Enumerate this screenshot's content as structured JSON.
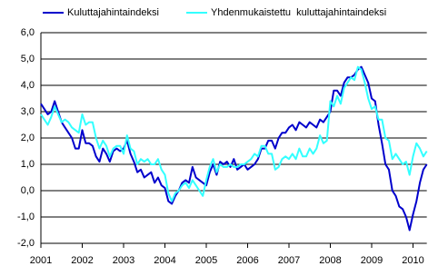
{
  "chart_data": {
    "type": "line",
    "categories": [
      "2001",
      null,
      null,
      null,
      null,
      null,
      null,
      null,
      null,
      null,
      null,
      null,
      "2002",
      null,
      null,
      null,
      null,
      null,
      null,
      null,
      null,
      null,
      null,
      null,
      "2003",
      null,
      null,
      null,
      null,
      null,
      null,
      null,
      null,
      null,
      null,
      null,
      "2004",
      null,
      null,
      null,
      null,
      null,
      null,
      null,
      null,
      null,
      null,
      null,
      "2005",
      null,
      null,
      null,
      null,
      null,
      null,
      null,
      null,
      null,
      null,
      null,
      "2006",
      null,
      null,
      null,
      null,
      null,
      null,
      null,
      null,
      null,
      null,
      null,
      "2007",
      null,
      null,
      null,
      null,
      null,
      null,
      null,
      null,
      null,
      null,
      null,
      "2008",
      null,
      null,
      null,
      null,
      null,
      null,
      null,
      null,
      null,
      null,
      null,
      "2009",
      null,
      null,
      null,
      null,
      null,
      null,
      null,
      null,
      null,
      null,
      null,
      "2010",
      null,
      null,
      null,
      null
    ],
    "series": [
      {
        "name": "Kuluttajahintaindeksi",
        "color": "#0000cc",
        "values": [
          3.3,
          3.1,
          2.9,
          3.0,
          3.4,
          3.0,
          2.6,
          2.4,
          2.2,
          2.0,
          1.6,
          1.6,
          2.3,
          1.8,
          1.8,
          1.7,
          1.3,
          1.1,
          1.6,
          1.4,
          1.1,
          1.5,
          1.6,
          1.5,
          1.6,
          1.9,
          1.4,
          1.1,
          0.7,
          0.8,
          0.5,
          0.6,
          0.7,
          0.3,
          0.5,
          0.2,
          0.1,
          -0.4,
          -0.5,
          -0.2,
          0.0,
          0.3,
          0.4,
          0.3,
          0.9,
          0.5,
          0.4,
          0.3,
          0.2,
          0.7,
          1.0,
          0.6,
          1.1,
          1.0,
          1.1,
          0.9,
          1.2,
          0.8,
          0.9,
          1.0,
          0.8,
          0.9,
          1.0,
          1.2,
          1.6,
          1.6,
          1.9,
          1.9,
          1.6,
          2.0,
          2.2,
          2.2,
          2.4,
          2.5,
          2.3,
          2.6,
          2.5,
          2.4,
          2.6,
          2.5,
          2.4,
          2.7,
          2.6,
          2.8,
          3.0,
          3.8,
          3.8,
          3.6,
          4.1,
          4.3,
          4.3,
          4.4,
          4.6,
          4.7,
          4.4,
          4.1,
          3.5,
          3.4,
          2.5,
          1.8,
          1.0,
          0.8,
          0.0,
          -0.2,
          -0.6,
          -0.7,
          -1.0,
          -1.5,
          -0.9,
          -0.4,
          0.3,
          0.8,
          1.0
        ]
      },
      {
        "name": "Yhdenmukaistettu  kuluttajahintaindeksi",
        "color": "#33ffff",
        "values": [
          2.9,
          2.7,
          2.5,
          2.8,
          3.2,
          2.9,
          2.6,
          2.7,
          2.6,
          2.4,
          2.3,
          2.2,
          2.9,
          2.5,
          2.6,
          2.6,
          2.0,
          1.6,
          1.9,
          1.7,
          1.3,
          1.6,
          1.7,
          1.7,
          1.4,
          2.1,
          1.6,
          1.5,
          1.0,
          1.2,
          1.1,
          1.2,
          1.0,
          1.0,
          1.2,
          0.8,
          0.6,
          -0.1,
          -0.4,
          -0.1,
          0.0,
          0.2,
          0.3,
          0.1,
          0.4,
          0.2,
          0.0,
          -0.2,
          0.4,
          0.9,
          1.2,
          0.7,
          1.0,
          0.9,
          0.9,
          1.0,
          0.9,
          0.9,
          1.0,
          1.0,
          1.1,
          1.2,
          1.4,
          1.3,
          1.7,
          1.7,
          1.4,
          1.4,
          0.8,
          0.9,
          1.2,
          1.3,
          1.2,
          1.4,
          1.2,
          1.6,
          1.3,
          1.3,
          1.6,
          1.4,
          1.6,
          2.1,
          1.8,
          1.9,
          3.4,
          3.2,
          3.6,
          3.3,
          3.9,
          4.1,
          4.3,
          4.2,
          4.7,
          4.6,
          4.1,
          3.5,
          3.1,
          3.2,
          2.7,
          2.7,
          2.0,
          1.9,
          1.2,
          1.4,
          1.2,
          1.0,
          1.1,
          0.6,
          1.3,
          1.8,
          1.6,
          1.3,
          1.5
        ]
      }
    ],
    "ylim": [
      -2,
      6
    ],
    "yticks": [
      {
        "value": -2,
        "label": "-2,0"
      },
      {
        "value": -1,
        "label": "-1,0"
      },
      {
        "value": 0,
        "label": "0,0"
      },
      {
        "value": 1,
        "label": "1,0"
      },
      {
        "value": 2,
        "label": "2,0"
      },
      {
        "value": 3,
        "label": "3,0"
      },
      {
        "value": 4,
        "label": "4,0"
      },
      {
        "value": 5,
        "label": "5,0"
      },
      {
        "value": 6,
        "label": "6,0"
      }
    ],
    "grid": true
  }
}
